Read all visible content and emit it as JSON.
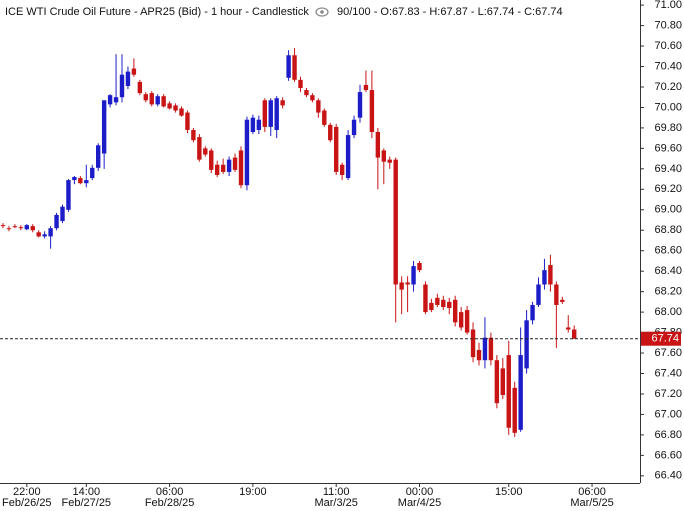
{
  "chart_data": {
    "type": "candlestick",
    "title": "ICE WTI Crude Oil Future - APR25 (Bid) - 1 hour - Candlestick",
    "info": "90/100 - O:67.83 - H:67.87 - L:67.74 - C:67.74",
    "categories": [
      null,
      null,
      null,
      null,
      "22:00",
      null,
      null,
      null,
      null,
      null,
      null,
      null,
      null,
      null,
      "14:00",
      null,
      null,
      null,
      null,
      null,
      null,
      null,
      null,
      null,
      null,
      null,
      null,
      null,
      "06:00",
      null,
      null,
      null,
      null,
      null,
      null,
      null,
      null,
      null,
      null,
      null,
      null,
      null,
      "19:00",
      null,
      null,
      null,
      null,
      null,
      null,
      null,
      null,
      null,
      null,
      null,
      null,
      null,
      "11:00",
      null,
      null,
      null,
      null,
      null,
      null,
      null,
      null,
      null,
      null,
      null,
      null,
      null,
      "00:00",
      null,
      null,
      null,
      null,
      null,
      null,
      null,
      null,
      null,
      null,
      null,
      null,
      null,
      null,
      "15:00",
      null,
      null,
      null,
      null,
      null,
      null,
      null,
      null,
      null,
      null,
      null,
      null,
      null,
      "06:00"
    ],
    "dates": [
      null,
      null,
      null,
      null,
      "Feb/26/25",
      null,
      null,
      null,
      null,
      null,
      null,
      null,
      null,
      null,
      "Feb/27/25",
      null,
      null,
      null,
      null,
      null,
      null,
      null,
      null,
      null,
      null,
      null,
      null,
      null,
      "Feb/28/25",
      null,
      null,
      null,
      null,
      null,
      null,
      null,
      null,
      null,
      null,
      null,
      null,
      null,
      null,
      null,
      null,
      null,
      null,
      null,
      null,
      null,
      null,
      null,
      null,
      null,
      null,
      null,
      "Mar/3/25",
      null,
      null,
      null,
      null,
      null,
      null,
      null,
      null,
      null,
      null,
      null,
      null,
      null,
      "Mar/4/25",
      null,
      null,
      null,
      null,
      null,
      null,
      null,
      null,
      null,
      null,
      null,
      null,
      null,
      null,
      null,
      null,
      null,
      null,
      null,
      null,
      null,
      null,
      null,
      null,
      null,
      null,
      null,
      null,
      "Mar/5/25"
    ],
    "open": [
      68.85,
      68.82,
      68.84,
      68.83,
      68.81,
      68.84,
      68.78,
      68.74,
      68.74,
      68.82,
      68.89,
      69.0,
      69.29,
      69.31,
      69.26,
      69.31,
      69.41,
      69.55,
      70.03,
      70.05,
      70.1,
      70.21,
      70.38,
      70.25,
      70.13,
      70.14,
      70.03,
      70.11,
      70.04,
      70.02,
      69.99,
      69.95,
      69.78,
      69.71,
      69.6,
      69.58,
      69.44,
      69.44,
      69.37,
      69.51,
      69.58,
      69.24,
      69.76,
      69.78,
      70.07,
      69.81,
      69.78,
      70.07,
      70.29,
      70.51,
      70.27,
      70.17,
      70.12,
      70.07,
      69.97,
      69.83,
      69.81,
      69.44,
      69.31,
      69.73,
      69.9,
      70.22,
      70.17,
      69.76,
      69.58,
      69.49,
      69.49,
      68.29,
      68.29,
      68.27,
      68.48,
      68.27,
      68.09,
      68.14,
      68.12,
      68.1,
      68.12,
      68.0,
      68.02,
      67.83,
      67.63,
      67.53,
      67.75,
      67.53,
      67.45,
      67.58,
      67.26,
      66.85,
      67.45,
      67.92,
      68.07,
      68.27,
      68.46,
      68.27,
      68.12,
      67.85,
      67.83,
      null,
      null,
      null
    ],
    "high": [
      68.87,
      68.84,
      68.86,
      68.85,
      68.86,
      68.86,
      68.8,
      68.79,
      68.84,
      68.97,
      69.05,
      69.3,
      69.33,
      69.33,
      69.44,
      69.44,
      69.65,
      70.07,
      70.13,
      70.52,
      70.52,
      70.4,
      70.48,
      70.27,
      70.15,
      70.16,
      70.13,
      70.13,
      70.06,
      70.04,
      70.01,
      69.97,
      69.8,
      69.74,
      69.62,
      69.6,
      69.48,
      69.5,
      69.52,
      69.55,
      69.62,
      69.91,
      69.93,
      69.92,
      70.09,
      70.09,
      70.11,
      70.1,
      70.56,
      70.58,
      70.3,
      70.19,
      70.14,
      70.09,
      69.99,
      69.85,
      69.84,
      69.46,
      69.78,
      69.92,
      70.22,
      70.36,
      70.36,
      69.8,
      69.6,
      69.52,
      69.51,
      68.35,
      68.35,
      68.5,
      68.5,
      68.3,
      68.13,
      68.18,
      68.16,
      68.14,
      68.16,
      68.05,
      68.06,
      67.9,
      67.7,
      67.95,
      67.8,
      67.58,
      67.55,
      67.72,
      67.32,
      67.85,
      68.02,
      68.1,
      68.34,
      68.52,
      68.56,
      68.3,
      68.15,
      67.97,
      67.87,
      null,
      null,
      null
    ],
    "low": [
      68.82,
      68.79,
      68.82,
      68.8,
      68.8,
      68.78,
      68.73,
      68.72,
      68.62,
      68.8,
      68.87,
      68.98,
      69.25,
      69.25,
      69.22,
      69.29,
      69.38,
      69.4,
      70.0,
      70.02,
      70.05,
      70.18,
      70.3,
      70.12,
      70.05,
      70.01,
      70.01,
      70.0,
      69.98,
      69.95,
      69.91,
      69.75,
      69.66,
      69.47,
      69.52,
      69.36,
      69.32,
      69.35,
      69.33,
      69.37,
      69.21,
      69.19,
      69.74,
      69.74,
      69.76,
      69.72,
      69.7,
      69.99,
      70.26,
      70.25,
      70.15,
      70.1,
      70.05,
      69.9,
      69.81,
      69.66,
      69.34,
      69.29,
      69.29,
      69.7,
      69.85,
      70.15,
      69.7,
      69.2,
      69.25,
      69.4,
      67.9,
      67.98,
      68.0,
      68.2,
      68.39,
      67.98,
      68.0,
      68.05,
      68.02,
      67.98,
      67.86,
      67.82,
      67.78,
      67.51,
      67.48,
      67.45,
      67.48,
      67.06,
      67.15,
      66.8,
      66.78,
      66.83,
      67.4,
      67.88,
      68.05,
      68.22,
      68.2,
      67.65,
      68.08,
      67.8,
      67.74,
      null,
      null,
      null
    ],
    "close": [
      68.84,
      68.81,
      68.83,
      68.82,
      68.85,
      68.8,
      68.74,
      68.76,
      68.82,
      68.95,
      69.03,
      69.29,
      69.32,
      69.26,
      69.29,
      69.41,
      69.63,
      70.07,
      70.12,
      70.1,
      70.32,
      70.35,
      70.32,
      70.14,
      70.07,
      70.03,
      70.11,
      70.01,
      69.99,
      69.97,
      69.92,
      69.78,
      69.68,
      69.49,
      69.54,
      69.39,
      69.34,
      69.37,
      69.49,
      69.39,
      69.24,
      69.88,
      69.9,
      69.88,
      69.81,
      70.07,
      70.09,
      70.02,
      70.51,
      70.27,
      70.19,
      70.12,
      70.07,
      69.95,
      69.83,
      69.68,
      69.37,
      69.34,
      69.73,
      69.88,
      70.15,
      70.17,
      69.76,
      69.51,
      69.47,
      69.46,
      68.27,
      68.22,
      68.27,
      68.45,
      68.41,
      68.0,
      68.02,
      68.07,
      68.05,
      68.04,
      67.9,
      67.85,
      67.8,
      67.56,
      67.53,
      67.75,
      67.53,
      67.11,
      67.19,
      66.87,
      66.82,
      67.58,
      67.92,
      68.07,
      68.27,
      68.41,
      68.27,
      68.07,
      68.1,
      67.83,
      67.74,
      null,
      null,
      null
    ],
    "up_color": "#1c1cc8",
    "down_color": "#c81414",
    "last_price": 67.74,
    "ylim": [
      66.33,
      71.05
    ],
    "yticks": [
      {
        "value": 66.4,
        "label": "66.40"
      },
      {
        "value": 66.6,
        "label": "66.60"
      },
      {
        "value": 66.8,
        "label": "66.80"
      },
      {
        "value": 67.0,
        "label": "67.00"
      },
      {
        "value": 67.2,
        "label": "67.20"
      },
      {
        "value": 67.4,
        "label": "67.40"
      },
      {
        "value": 67.6,
        "label": "67.60"
      },
      {
        "value": 67.8,
        "label": "67.80"
      },
      {
        "value": 68.0,
        "label": "68.00"
      },
      {
        "value": 68.2,
        "label": "68.20"
      },
      {
        "value": 68.4,
        "label": "68.40"
      },
      {
        "value": 68.6,
        "label": "68.60"
      },
      {
        "value": 68.8,
        "label": "68.80"
      },
      {
        "value": 69.0,
        "label": "69.00"
      },
      {
        "value": 69.2,
        "label": "69.20"
      },
      {
        "value": 69.4,
        "label": "69.40"
      },
      {
        "value": 69.6,
        "label": "69.60"
      },
      {
        "value": 69.8,
        "label": "69.80"
      },
      {
        "value": 70.0,
        "label": "70.00"
      },
      {
        "value": 70.2,
        "label": "70.20"
      },
      {
        "value": 70.4,
        "label": "70.40"
      },
      {
        "value": 70.6,
        "label": "70.60"
      },
      {
        "value": 70.8,
        "label": "70.80"
      },
      {
        "value": 71.0,
        "label": "71.00"
      }
    ]
  }
}
